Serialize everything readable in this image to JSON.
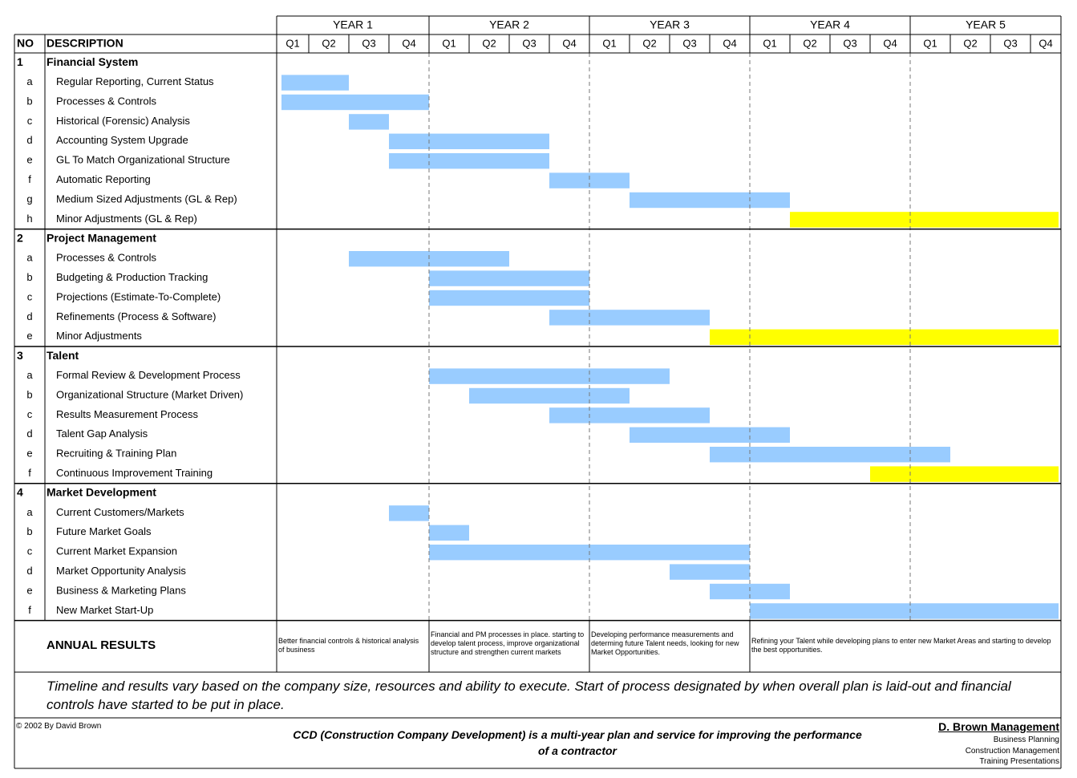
{
  "header": {
    "no": "NO",
    "description": "DESCRIPTION",
    "years": [
      "YEAR 1",
      "YEAR 2",
      "YEAR 3",
      "YEAR 4",
      "YEAR 5"
    ],
    "quarters": [
      "Q1",
      "Q2",
      "Q3",
      "Q4"
    ]
  },
  "sections": [
    {
      "number": "1",
      "title": "Financial System",
      "tasks": [
        {
          "letter": "a",
          "name": "Regular Reporting, Current Status",
          "start": 0,
          "end": 2,
          "color": "#99ccff"
        },
        {
          "letter": "b",
          "name": "Processes & Controls",
          "start": 0,
          "end": 4,
          "color": "#99ccff"
        },
        {
          "letter": "c",
          "name": "Historical (Forensic) Analysis",
          "start": 2,
          "end": 3,
          "color": "#99ccff"
        },
        {
          "letter": "d",
          "name": "Accounting System Upgrade",
          "start": 3,
          "end": 7,
          "color": "#99ccff"
        },
        {
          "letter": "e",
          "name": "GL To Match Organizational Structure",
          "start": 3,
          "end": 7,
          "color": "#99ccff"
        },
        {
          "letter": "f",
          "name": "Automatic Reporting",
          "start": 7,
          "end": 9,
          "color": "#99ccff"
        },
        {
          "letter": "g",
          "name": "Medium Sized Adjustments (GL & Rep)",
          "start": 9,
          "end": 13,
          "color": "#99ccff"
        },
        {
          "letter": "h",
          "name": "Minor Adjustments (GL & Rep)",
          "start": 13,
          "end": 20,
          "color": "#ffff00"
        }
      ]
    },
    {
      "number": "2",
      "title": "Project Management",
      "tasks": [
        {
          "letter": "a",
          "name": "Processes & Controls",
          "start": 2,
          "end": 6,
          "color": "#99ccff"
        },
        {
          "letter": "b",
          "name": "Budgeting & Production Tracking",
          "start": 4,
          "end": 8,
          "color": "#99ccff"
        },
        {
          "letter": "c",
          "name": "Projections (Estimate-To-Complete)",
          "start": 4,
          "end": 8,
          "color": "#99ccff"
        },
        {
          "letter": "d",
          "name": "Refinements (Process & Software)",
          "start": 7,
          "end": 11,
          "color": "#99ccff"
        },
        {
          "letter": "e",
          "name": "Minor Adjustments",
          "start": 11,
          "end": 20,
          "color": "#ffff00"
        }
      ]
    },
    {
      "number": "3",
      "title": "Talent",
      "tasks": [
        {
          "letter": "a",
          "name": "Formal Review & Development Process",
          "start": 4,
          "end": 10,
          "color": "#99ccff"
        },
        {
          "letter": "b",
          "name": "Organizational Structure (Market Driven)",
          "start": 5,
          "end": 9,
          "color": "#99ccff"
        },
        {
          "letter": "c",
          "name": "Results Measurement Process",
          "start": 7,
          "end": 11,
          "color": "#99ccff"
        },
        {
          "letter": "d",
          "name": "Talent Gap Analysis",
          "start": 9,
          "end": 13,
          "color": "#99ccff"
        },
        {
          "letter": "e",
          "name": "Recruiting & Training Plan",
          "start": 11,
          "end": 17,
          "color": "#99ccff"
        },
        {
          "letter": "f",
          "name": "Continuous Improvement Training",
          "start": 15,
          "end": 20,
          "color": "#ffff00"
        }
      ]
    },
    {
      "number": "4",
      "title": "Market Development",
      "tasks": [
        {
          "letter": "a",
          "name": "Current Customers/Markets",
          "start": 3,
          "end": 4,
          "color": "#99ccff"
        },
        {
          "letter": "b",
          "name": "Future Market Goals",
          "start": 4,
          "end": 5,
          "color": "#99ccff"
        },
        {
          "letter": "c",
          "name": "Current Market Expansion",
          "start": 4,
          "end": 12,
          "color": "#99ccff"
        },
        {
          "letter": "d",
          "name": "Market Opportunity Analysis",
          "start": 10,
          "end": 12,
          "color": "#99ccff"
        },
        {
          "letter": "e",
          "name": "Business & Marketing Plans",
          "start": 11,
          "end": 13,
          "color": "#99ccff"
        },
        {
          "letter": "f",
          "name": "New Market Start-Up",
          "start": 12,
          "end": 20,
          "color": "#99ccff"
        }
      ]
    }
  ],
  "annual_results": {
    "label": "ANNUAL RESULTS",
    "notes": [
      "Better financial controls & historical analysis of business",
      "Financial and PM processes in place. starting to develop talent process, improve organizational structure and strengthen current markets",
      "Developing performance measurements and determing future Talent needs, looking for new Market Opportunities.",
      "Refining your Talent while developing plans to enter new Market Areas and starting to develop the best opportunities."
    ]
  },
  "disclaimer": "Timeline and results vary based on the company size, resources and ability to execute.  Start of process designated by when overall plan is laid-out and financial controls have started to be put in place.",
  "footer": {
    "copyright": "© 2002 By David Brown",
    "tagline": "CCD (Construction Company Development) is a multi-year plan and service for improving the performance of a contractor",
    "company": "D. Brown Management",
    "services": [
      "Business Planning",
      "Construction Management",
      "Training Presentations"
    ]
  }
}
